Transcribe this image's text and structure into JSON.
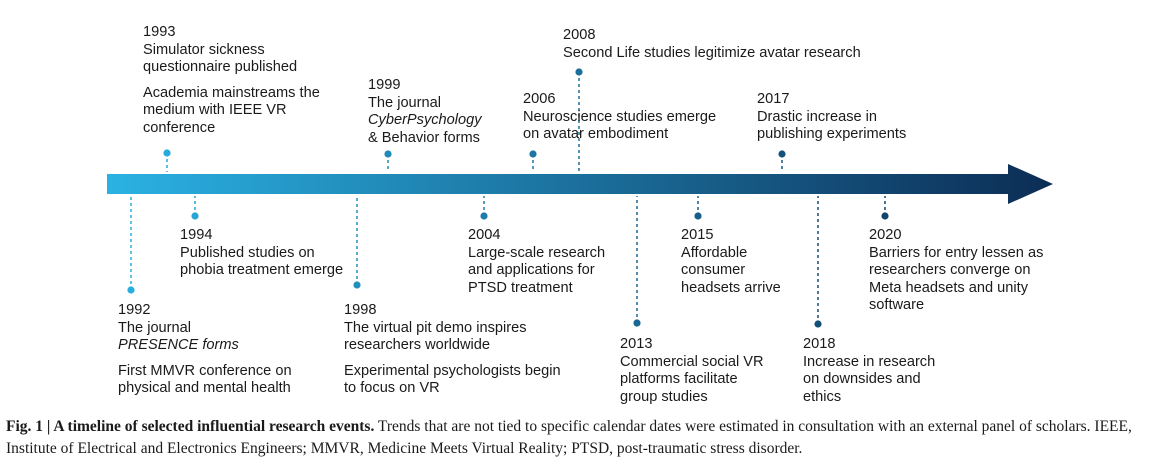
{
  "colors": {
    "arrow_start": "#2ab2e3",
    "arrow_end": "#0c2d55"
  },
  "events": [
    {
      "id": "e1993",
      "year": "1993",
      "lines": [
        "Simulator sickness",
        "questionnaire published",
        "",
        "Academia mainstreams the",
        "medium with IEEE VR",
        "conference"
      ]
    },
    {
      "id": "e1994",
      "year": "1994",
      "lines": [
        "Published studies on",
        "phobia treatment emerge"
      ]
    },
    {
      "id": "e1992",
      "year": "1992",
      "lines": [
        "The journal",
        "PRESENCE forms",
        "",
        "First MMVR conference on",
        "physical and mental health"
      ]
    },
    {
      "id": "e1999",
      "year": "1999",
      "lines": [
        "The journal",
        "CyberPsychology",
        "& Behavior forms"
      ]
    },
    {
      "id": "e1998",
      "year": "1998",
      "lines": [
        "The virtual pit demo inspires",
        "researchers worldwide",
        "",
        "Experimental psychologists begin",
        "to focus on VR"
      ]
    },
    {
      "id": "e2004",
      "year": "2004",
      "lines": [
        "Large-scale research",
        "and applications for",
        "PTSD treatment"
      ]
    },
    {
      "id": "e2006",
      "year": "2006",
      "lines": [
        "Neuroscience studies emerge",
        "on avatar embodiment"
      ]
    },
    {
      "id": "e2008",
      "year": "2008",
      "lines": [
        "Second Life studies legitimize avatar research"
      ]
    },
    {
      "id": "e2013",
      "year": "2013",
      "lines": [
        "Commercial social VR",
        "platforms facilitate",
        "group studies"
      ]
    },
    {
      "id": "e2015",
      "year": "2015",
      "lines": [
        "Affordable",
        "consumer",
        "headsets arrive"
      ]
    },
    {
      "id": "e2017",
      "year": "2017",
      "lines": [
        "Drastic increase in",
        "publishing experiments"
      ]
    },
    {
      "id": "e2018",
      "year": "2018",
      "lines": [
        "Increase in research",
        "on downsides and",
        "ethics"
      ]
    },
    {
      "id": "e2020",
      "year": "2020",
      "lines": [
        "Barriers for entry lessen as",
        "researchers converge on",
        "Meta headsets and unity",
        "software"
      ]
    }
  ],
  "caption": {
    "bold": "Fig. 1 | A timeline of selected influential research events.",
    "text": " Trends that are not tied to specific calendar dates were estimated in consultation with an external panel of scholars. IEEE, Institute of Electrical and Electronics Engineers; MMVR, Medicine Meets Virtual Reality; PTSD, post-traumatic stress disorder."
  }
}
